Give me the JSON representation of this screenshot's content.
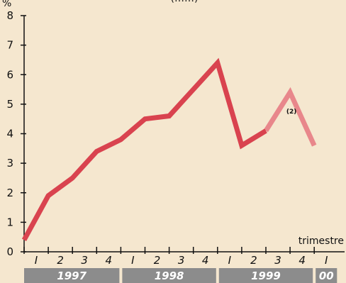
{
  "chart_data": {
    "type": "line",
    "title": "(……)",
    "ylabel": "%",
    "xlabel": "trimestre",
    "ylim": [
      0,
      8
    ],
    "yticks": [
      "0",
      "1",
      "2",
      "3",
      "4",
      "5",
      "6",
      "7",
      "8"
    ],
    "quarters": [
      "I",
      "2",
      "3",
      "4",
      "I",
      "2",
      "3",
      "4",
      "I",
      "2",
      "3",
      "4",
      "I"
    ],
    "years": [
      {
        "label": "1997",
        "span": 4
      },
      {
        "label": "1998",
        "span": 4
      },
      {
        "label": "1999",
        "span": 4
      },
      {
        "label": "00",
        "span": 1
      }
    ],
    "series": [
      {
        "values": [
          0.4,
          1.9,
          2.5,
          3.4,
          3.8,
          4.5,
          4.6,
          5.5,
          6.4,
          3.6,
          4.1,
          5.4,
          3.6
        ],
        "solid_until_index": 10,
        "color_solid": "#d9434f",
        "color_estimate": "#e8878b",
        "note_at_index": 11,
        "note": "(2)"
      }
    ]
  }
}
